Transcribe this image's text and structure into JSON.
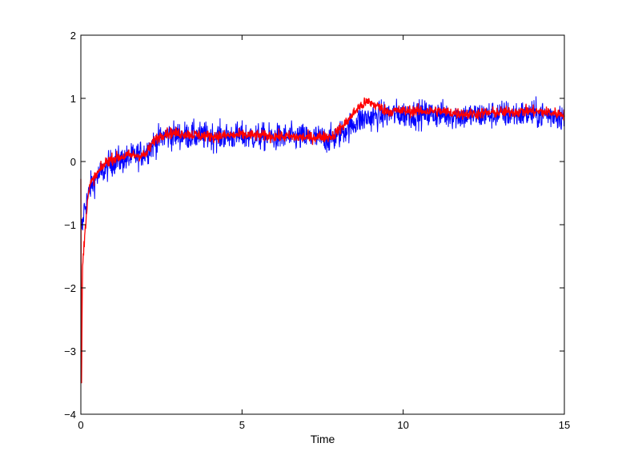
{
  "chart_data": {
    "type": "line",
    "title": "",
    "xlabel": "Time",
    "ylabel": "",
    "xlim": [
      0,
      15
    ],
    "ylim": [
      -4,
      2
    ],
    "xticks": [
      0,
      5,
      10,
      15
    ],
    "yticks": [
      -4,
      -3,
      -2,
      -1,
      0,
      1,
      2
    ],
    "xtick_labels": [
      "0",
      "5",
      "10",
      "15"
    ],
    "ytick_labels": [
      "−4",
      "−3",
      "−2",
      "−1",
      "0",
      "1",
      "2"
    ],
    "grid": false,
    "legend": "none",
    "series": [
      {
        "color": "#0000ff",
        "noise_amplitude": 0.22,
        "x": [
          0,
          0.05,
          0.1,
          0.2,
          0.3,
          0.5,
          0.8,
          1.0,
          1.5,
          2.0,
          2.3,
          2.6,
          3.0,
          4.0,
          5.0,
          6.0,
          7.0,
          7.8,
          8.2,
          8.6,
          9.0,
          9.5,
          10.0,
          11.0,
          12.0,
          13.0,
          14.0,
          15.0
        ],
        "values": [
          -1.0,
          -1.05,
          -0.75,
          -0.6,
          -0.4,
          -0.25,
          -0.1,
          0.0,
          0.05,
          0.15,
          0.3,
          0.4,
          0.42,
          0.4,
          0.4,
          0.38,
          0.38,
          0.35,
          0.5,
          0.65,
          0.7,
          0.75,
          0.75,
          0.75,
          0.72,
          0.75,
          0.75,
          0.72
        ]
      },
      {
        "color": "#ff0000",
        "noise_amplitude": 0.09,
        "x": [
          0,
          0.02,
          0.05,
          0.1,
          0.15,
          0.2,
          0.3,
          0.5,
          0.8,
          1.0,
          1.5,
          2.0,
          2.3,
          2.6,
          3.0,
          4.0,
          5.0,
          6.0,
          7.0,
          7.8,
          8.2,
          8.6,
          8.9,
          9.5,
          10.0,
          11.0,
          12.0,
          13.0,
          14.0,
          15.0
        ],
        "values": [
          -0.3,
          -3.6,
          -1.7,
          -1.3,
          -1.0,
          -0.6,
          -0.35,
          -0.2,
          0.0,
          0.05,
          0.1,
          0.1,
          0.35,
          0.45,
          0.45,
          0.4,
          0.42,
          0.4,
          0.38,
          0.4,
          0.6,
          0.85,
          0.95,
          0.8,
          0.8,
          0.8,
          0.75,
          0.78,
          0.8,
          0.75
        ]
      }
    ]
  }
}
